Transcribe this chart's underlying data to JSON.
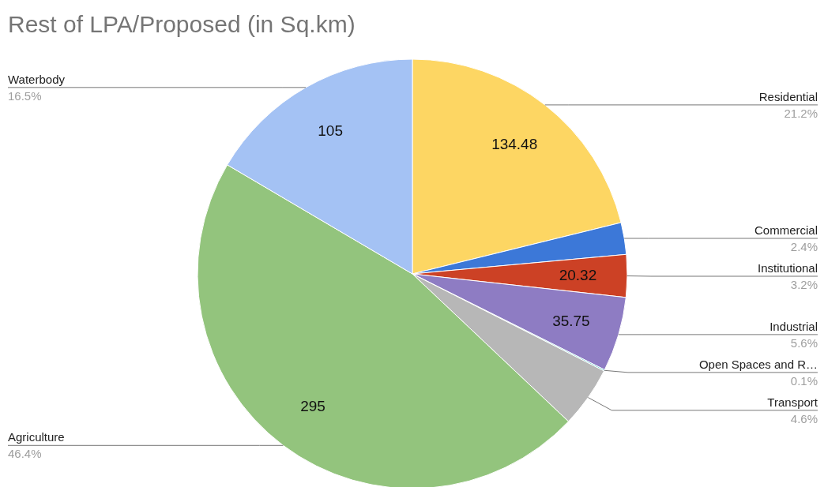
{
  "chart_data": {
    "type": "pie",
    "title": "Rest of LPA/Proposed (in Sq.km)",
    "categories": [
      "Residential",
      "Commercial",
      "Institutional",
      "Industrial",
      "Open Spaces and R…",
      "Transport",
      "Agriculture",
      "Waterbody"
    ],
    "values": [
      134.48,
      15.2,
      20.32,
      35.75,
      0.6,
      29.2,
      295,
      105
    ],
    "colors": [
      "#fdd663",
      "#3c78d8",
      "#cc4125",
      "#8e7cc3",
      "#46bdc6",
      "#b7b7b7",
      "#93c47d",
      "#a4c2f4"
    ],
    "value_labels": [
      "134.48",
      null,
      "20.32",
      "35.75",
      null,
      null,
      "295",
      "105"
    ],
    "annotations": [
      "21.2%",
      "2.4%",
      "3.2%",
      "5.6%",
      "0.1%",
      "4.6%",
      "46.4%",
      "16.5%"
    ]
  }
}
